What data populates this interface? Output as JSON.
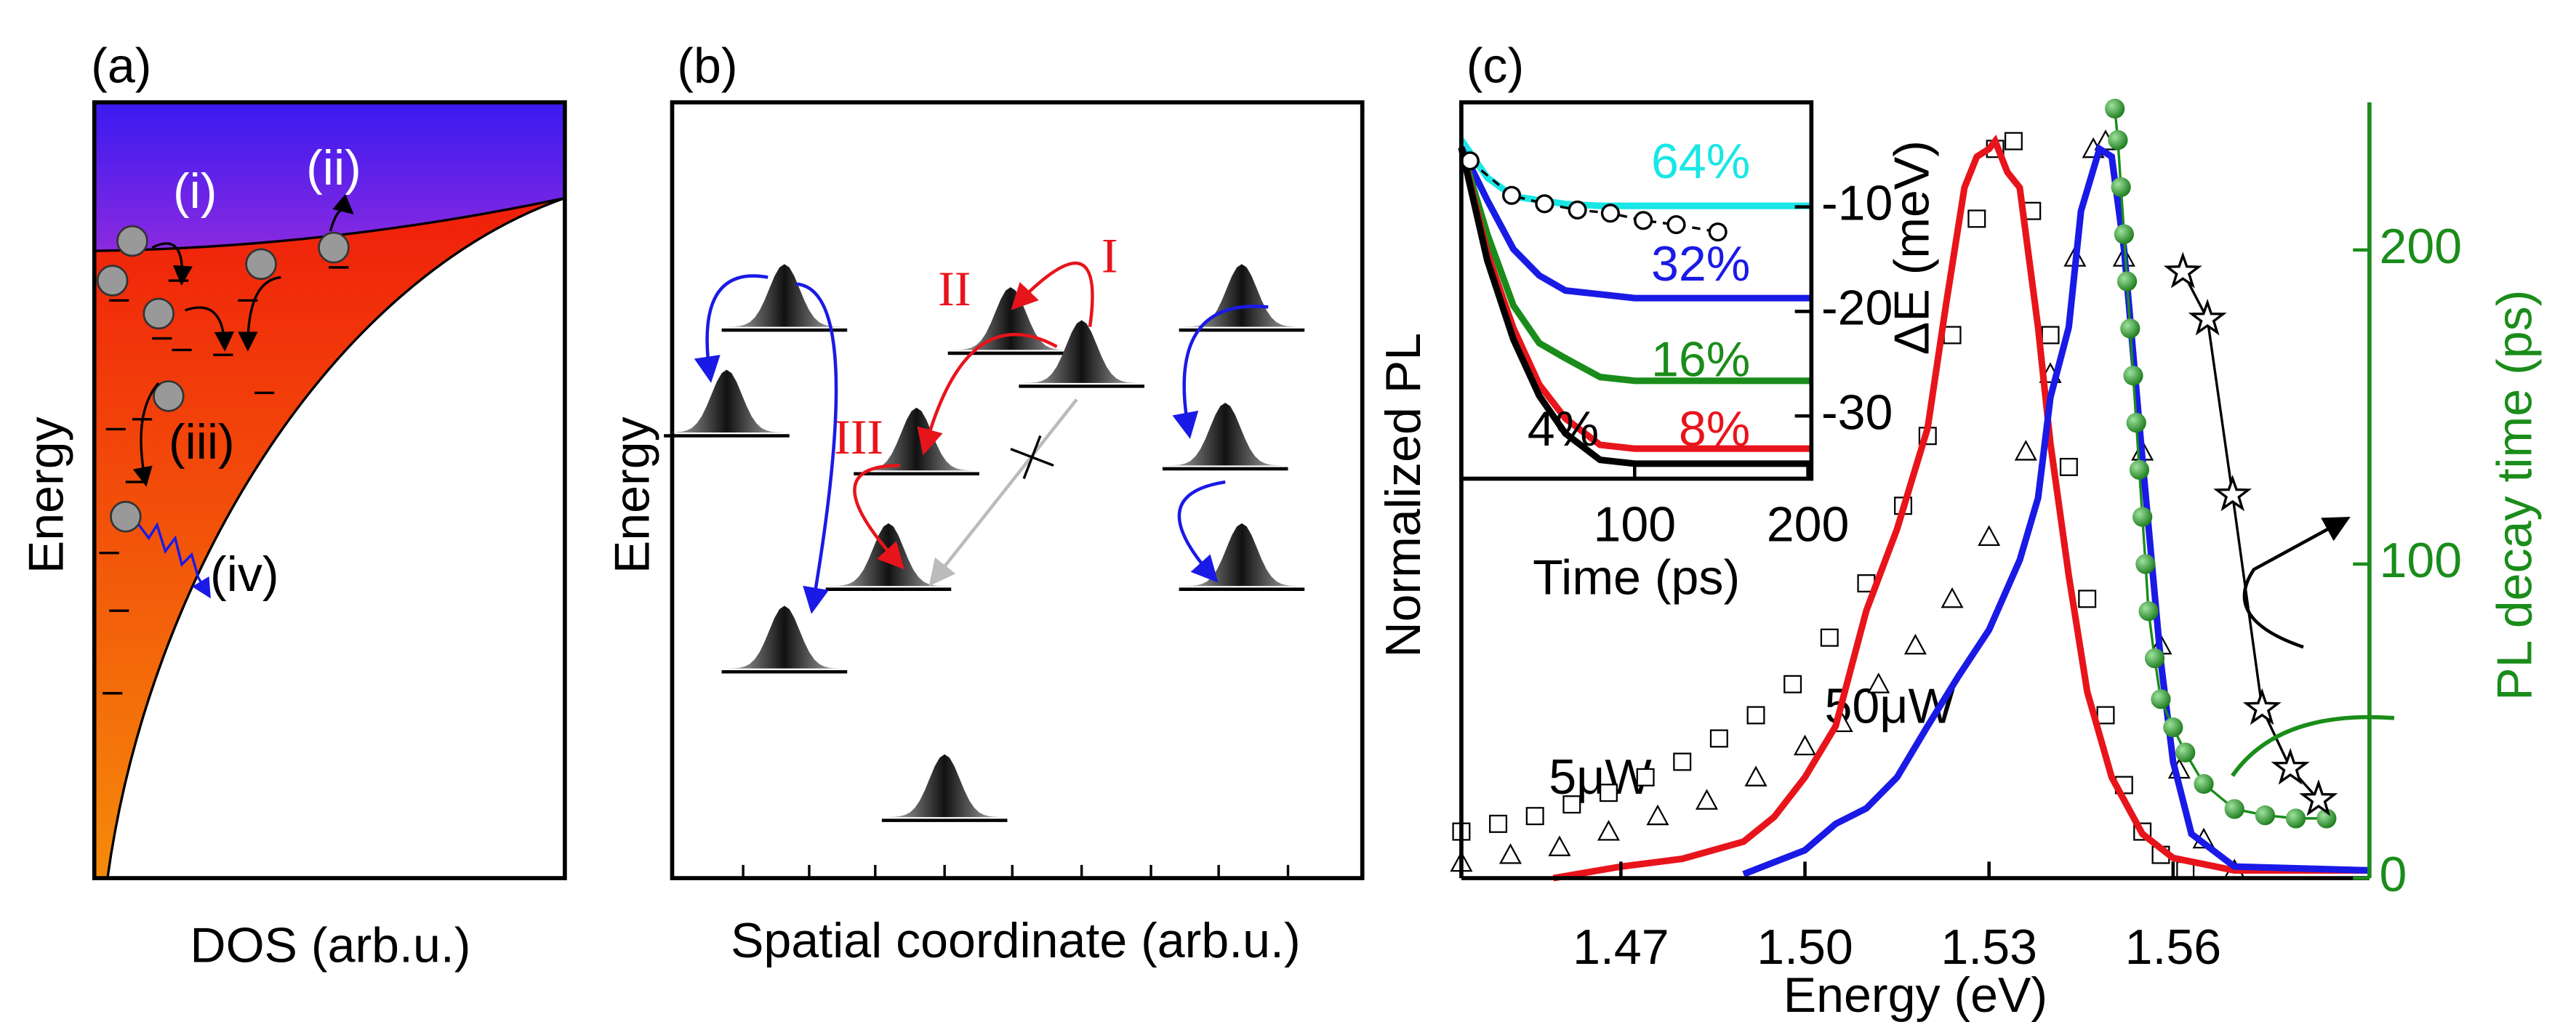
{
  "panel_a": {
    "label": "(a)",
    "ylabel": "Energy",
    "xlabel": "DOS (arb.u.)",
    "annotations": [
      "(i)",
      "(ii)",
      "(iii)",
      "(iv)"
    ]
  },
  "panel_b": {
    "label": "(b)",
    "ylabel": "Energy",
    "xlabel": "Spatial coordinate (arb.u.)",
    "annotations": [
      "I",
      "II",
      "III"
    ]
  },
  "chart_data": [
    {
      "type": "line",
      "label": "(c)",
      "xlabel": "Energy (eV)",
      "ylabel": "Normalized PL",
      "y2label": "PL decay time (ps)",
      "y2_color": "#1a8c1a",
      "annotations": [
        "5μW",
        "50μW"
      ],
      "xlim": [
        1.444,
        1.592
      ],
      "xticks": [
        1.47,
        {
          "value": 1.5,
          "label": "1.50"
        },
        1.53,
        1.56
      ],
      "ylim": [
        0,
        1
      ],
      "y2lim": [
        0,
        247
      ],
      "y2ticks": [
        0,
        100,
        200
      ],
      "grid": false,
      "series": [
        {
          "color": "#000000",
          "style": "marker",
          "marker": "square",
          "x": [
            1.444,
            1.45,
            1.456,
            1.462,
            1.468,
            1.474,
            1.48,
            1.486,
            1.492,
            1.498,
            1.504,
            1.51,
            1.516,
            1.52,
            1.524,
            1.528,
            1.531,
            1.534,
            1.537,
            1.54,
            1.543,
            1.546,
            1.549,
            1.552,
            1.555,
            1.558,
            1.562
          ],
          "values": [
            0.06,
            0.07,
            0.08,
            0.095,
            0.11,
            0.13,
            0.15,
            0.18,
            0.21,
            0.25,
            0.31,
            0.38,
            0.48,
            0.57,
            0.7,
            0.85,
            0.94,
            0.95,
            0.86,
            0.7,
            0.53,
            0.36,
            0.21,
            0.12,
            0.06,
            0.03,
            0.01
          ]
        },
        {
          "color": "#000000",
          "style": "marker",
          "marker": "triangle",
          "x": [
            1.444,
            1.452,
            1.46,
            1.468,
            1.476,
            1.484,
            1.492,
            1.5,
            1.506,
            1.512,
            1.518,
            1.524,
            1.53,
            1.536,
            1.54,
            1.544,
            1.547,
            1.549,
            1.552,
            1.555,
            1.558,
            1.561,
            1.565,
            1.57
          ],
          "values": [
            0.02,
            0.03,
            0.04,
            0.06,
            0.08,
            0.1,
            0.13,
            0.17,
            0.2,
            0.25,
            0.3,
            0.36,
            0.44,
            0.55,
            0.65,
            0.8,
            0.94,
            0.95,
            0.8,
            0.55,
            0.3,
            0.14,
            0.05,
            0.01
          ]
        },
        {
          "color": "#e8141b",
          "style": "line",
          "x": [
            1.459,
            1.47,
            1.48,
            1.49,
            1.495,
            1.5,
            1.505,
            1.51,
            1.515,
            1.52,
            1.523,
            1.526,
            1.528,
            1.53,
            1.531,
            1.533,
            1.535,
            1.538,
            1.54,
            1.543,
            1.546,
            1.55,
            1.555,
            1.56,
            1.57,
            1.592
          ],
          "values": [
            0,
            0.015,
            0.025,
            0.047,
            0.079,
            0.13,
            0.196,
            0.345,
            0.45,
            0.58,
            0.74,
            0.89,
            0.93,
            0.94,
            0.95,
            0.91,
            0.89,
            0.71,
            0.56,
            0.39,
            0.24,
            0.13,
            0.057,
            0.026,
            0.01,
            0.01
          ]
        },
        {
          "color": "#1a1ae6",
          "style": "line",
          "x": [
            1.49,
            1.5,
            1.505,
            1.51,
            1.515,
            1.52,
            1.525,
            1.53,
            1.535,
            1.538,
            1.54,
            1.543,
            1.545,
            1.548,
            1.55,
            1.552,
            1.555,
            1.558,
            1.56,
            1.563,
            1.57,
            1.592
          ],
          "values": [
            0.005,
            0.036,
            0.07,
            0.09,
            0.13,
            0.196,
            0.26,
            0.32,
            0.41,
            0.49,
            0.62,
            0.71,
            0.86,
            0.94,
            0.93,
            0.81,
            0.54,
            0.28,
            0.15,
            0.057,
            0.015,
            0.01
          ]
        },
        {
          "color": "#1a8c1a",
          "style": "line+marker",
          "marker": "ball",
          "axis": "y2",
          "x": [
            1.5505,
            1.551,
            1.5515,
            1.552,
            1.5525,
            1.553,
            1.5535,
            1.554,
            1.5545,
            1.555,
            1.5555,
            1.556,
            1.557,
            1.558,
            1.56,
            1.562,
            1.565,
            1.57,
            1.575,
            1.58,
            1.585
          ],
          "values": [
            245,
            235,
            220,
            205,
            190,
            175,
            160,
            145,
            130,
            115,
            100,
            85,
            70,
            57,
            48,
            40,
            30,
            22,
            20,
            19,
            19
          ]
        },
        {
          "color": "#000000",
          "style": "line+marker",
          "marker": "star",
          "axis": "y2",
          "x": [
            1.5616,
            1.5656,
            1.5697,
            1.5745,
            1.5791,
            1.5837
          ],
          "values": [
            193,
            178,
            122,
            54,
            35,
            25
          ]
        }
      ]
    },
    {
      "type": "line",
      "xlabel": "Time (ps)",
      "y2label": "ΔE (meV)",
      "xlim": [
        0,
        202
      ],
      "xticks": [
        100,
        200
      ],
      "ylim": [
        0,
        1
      ],
      "y2lim": [
        -36,
        0
      ],
      "y2ticks": [
        -10,
        -20,
        -30
      ],
      "grid": false,
      "x": [
        0,
        15,
        30,
        45,
        60,
        80,
        100,
        150,
        202
      ],
      "series": [
        {
          "name": "64%",
          "color": "#19e6e6",
          "style": "line",
          "values": [
            0.9,
            0.8,
            0.75,
            0.74,
            0.73,
            0.725,
            0.725,
            0.725,
            0.725
          ]
        },
        {
          "name": "32%",
          "color": "#1a1ae6",
          "style": "line",
          "values": [
            0.88,
            0.74,
            0.61,
            0.54,
            0.5,
            0.49,
            0.48,
            0.48,
            0.48
          ]
        },
        {
          "name": "16%",
          "color": "#1a8c1a",
          "style": "line",
          "values": [
            0.88,
            0.65,
            0.46,
            0.36,
            0.32,
            0.27,
            0.26,
            0.26,
            0.26
          ]
        },
        {
          "name": "8%",
          "color": "#e8141b",
          "style": "line",
          "values": [
            0.88,
            0.6,
            0.4,
            0.25,
            0.16,
            0.09,
            0.08,
            0.08,
            0.08
          ]
        },
        {
          "name": "4%",
          "color": "#000000",
          "style": "line",
          "values": [
            0.88,
            0.58,
            0.37,
            0.22,
            0.12,
            0.05,
            0.04,
            0.04,
            0.04
          ]
        },
        {
          "color": "#000000",
          "style": "line+marker",
          "marker": "circle",
          "dash": true,
          "axis": "y2",
          "x": [
            5,
            29,
            48,
            67,
            86,
            105,
            124,
            148
          ],
          "values": [
            -5.6,
            -8.9,
            -9.7,
            -10.3,
            -10.6,
            -11.3,
            -11.7,
            -12.4
          ]
        }
      ]
    }
  ]
}
